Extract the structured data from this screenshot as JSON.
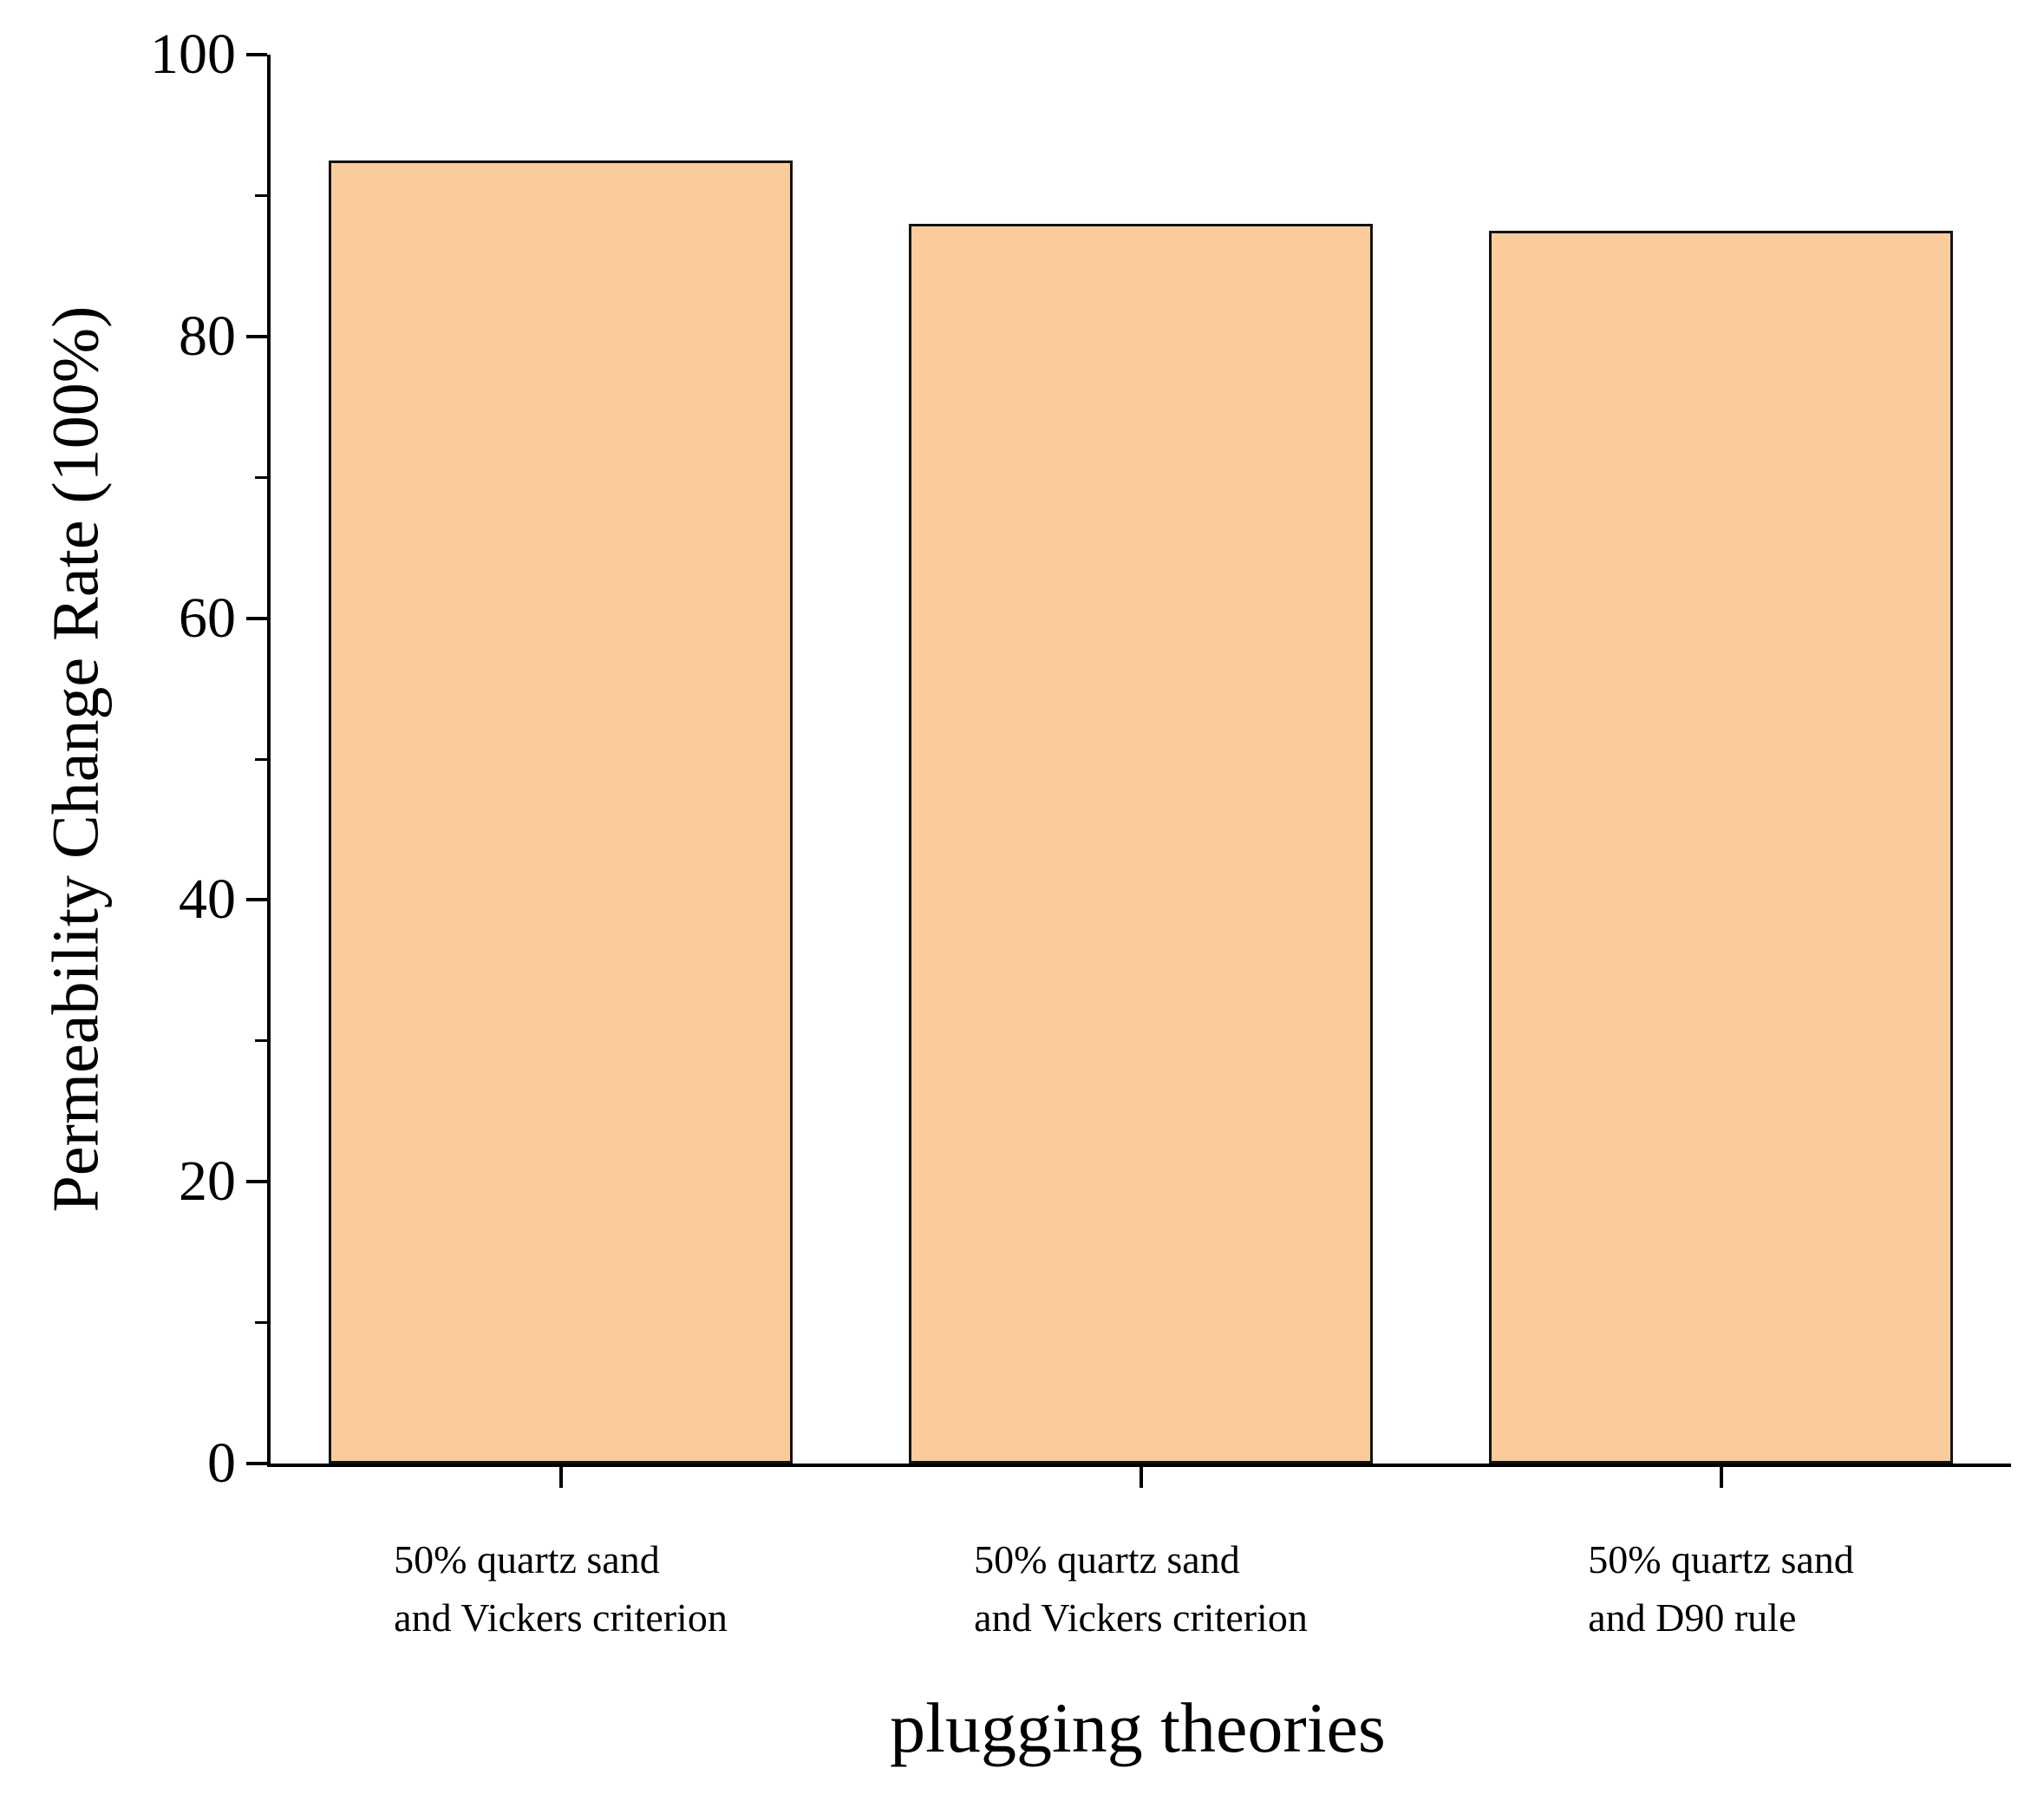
{
  "chart_data": {
    "type": "bar",
    "title": "",
    "xlabel": "plugging theories",
    "ylabel": "Permeability Change Rate (100%)",
    "categories": [
      [
        "50% quartz sand",
        "and Vickers criterion"
      ],
      [
        "50% quartz sand",
        "and Vickers criterion"
      ],
      [
        "50% quartz sand",
        "and D90 rule"
      ]
    ],
    "values": [
      92.5,
      88,
      87.5
    ],
    "ylim": [
      0,
      100
    ],
    "yticks": [
      0,
      20,
      40,
      60,
      80,
      100
    ],
    "minor_tick_step": 10,
    "bar_color": "#FACC9C",
    "bar_border_color": "#121212",
    "axis_color": "#000000",
    "grid": false,
    "legend": null
  }
}
